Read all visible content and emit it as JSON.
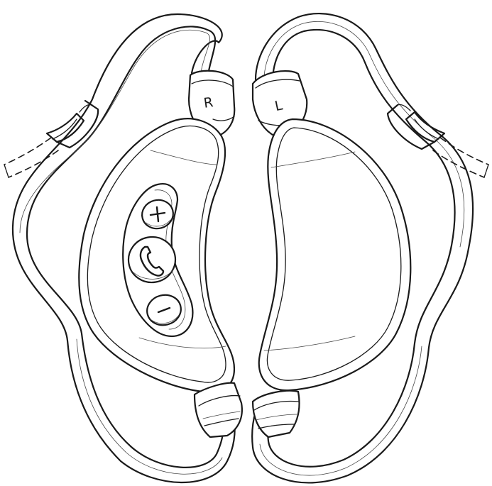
{
  "right_earpiece": {
    "side_label": "R",
    "buttons": [
      {
        "name": "volume-up",
        "symbol": "+"
      },
      {
        "name": "call",
        "symbol": "phone"
      },
      {
        "name": "volume-down",
        "symbol": "−"
      }
    ]
  },
  "left_earpiece": {
    "side_label": "L"
  }
}
